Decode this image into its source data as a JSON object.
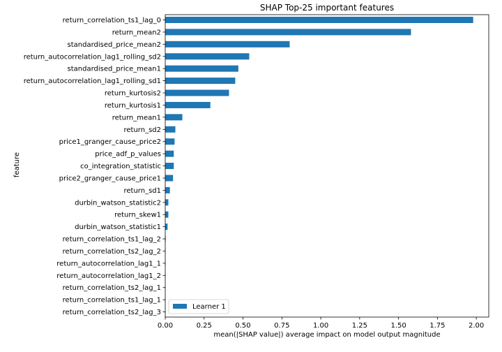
{
  "chart_data": {
    "type": "bar",
    "orientation": "horizontal",
    "title": "SHAP Top-25 important features",
    "xlabel": "mean(|SHAP value|) average impact on model output magnitude",
    "ylabel": "feature",
    "xlim": [
      0,
      2.08
    ],
    "xticks": [
      "0.00",
      "0.25",
      "0.50",
      "0.75",
      "1.00",
      "1.25",
      "1.50",
      "1.75",
      "2.00"
    ],
    "grid": false,
    "legend_position": "lower-left",
    "bar_color": "#1f77b4",
    "categories": [
      "return_correlation_ts1_lag_0",
      "return_mean2",
      "standardised_price_mean2",
      "return_autocorrelation_lag1_rolling_sd2",
      "standardised_price_mean1",
      "return_autocorrelation_lag1_rolling_sd1",
      "return_kurtosis2",
      "return_kurtosis1",
      "return_mean1",
      "return_sd2",
      "price1_granger_cause_price2",
      "price_adf_p_values",
      "co_integration_statistic",
      "price2_granger_cause_price1",
      "return_sd1",
      "durbin_watson_statistic2",
      "return_skew1",
      "durbin_watson_statistic1",
      "return_correlation_ts1_lag_2",
      "return_correlation_ts2_lag_2",
      "return_autocorrelation_lag1_1",
      "return_autocorrelation_lag1_2",
      "return_correlation_ts2_lag_1",
      "return_correlation_ts1_lag_1",
      "return_correlation_ts2_lag_3"
    ],
    "series": [
      {
        "name": "Learner 1",
        "values": [
          1.98,
          1.58,
          0.8,
          0.54,
          0.47,
          0.45,
          0.41,
          0.29,
          0.11,
          0.065,
          0.06,
          0.055,
          0.055,
          0.05,
          0.03,
          0.02,
          0.02,
          0.015,
          0.003,
          0.002,
          0.002,
          0.002,
          0.001,
          0.001,
          0.001
        ]
      }
    ]
  }
}
